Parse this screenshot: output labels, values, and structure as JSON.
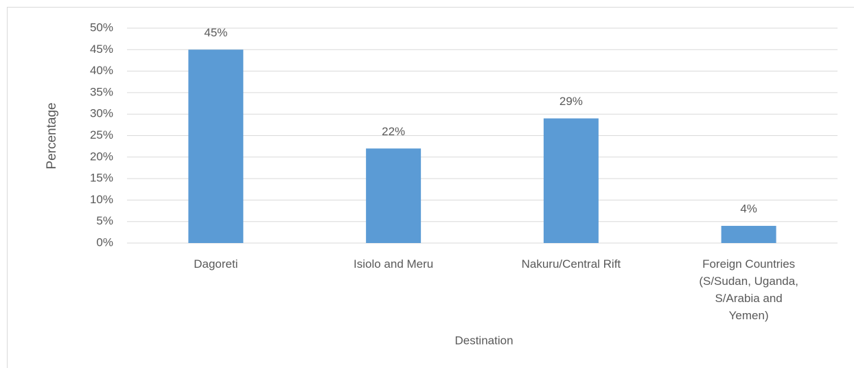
{
  "chart_data": {
    "type": "bar",
    "x_label": "Destination",
    "y_label": "Percentage",
    "categories": [
      "Dagoreti",
      "Isiolo and Meru",
      "Nakuru/Central Rift",
      "Foreign Countries (S/Sudan, Uganda, S/Arabia and Yemen)"
    ],
    "values": [
      45,
      22,
      29,
      4
    ],
    "value_labels": [
      "45%",
      "22%",
      "29%",
      "4%"
    ],
    "color": "#5b9bd5",
    "ylim": [
      0,
      50
    ],
    "yticks": [
      {
        "value": 0,
        "label": "0%"
      },
      {
        "value": 5,
        "label": "5%"
      },
      {
        "value": 10,
        "label": "10%"
      },
      {
        "value": 15,
        "label": "15%"
      },
      {
        "value": 20,
        "label": "20%"
      },
      {
        "value": 25,
        "label": "25%"
      },
      {
        "value": 30,
        "label": "30%"
      },
      {
        "value": 35,
        "label": "35%"
      },
      {
        "value": 40,
        "label": "40%"
      },
      {
        "value": 45,
        "label": "45%"
      },
      {
        "value": 50,
        "label": "50%"
      }
    ],
    "grid": true
  }
}
